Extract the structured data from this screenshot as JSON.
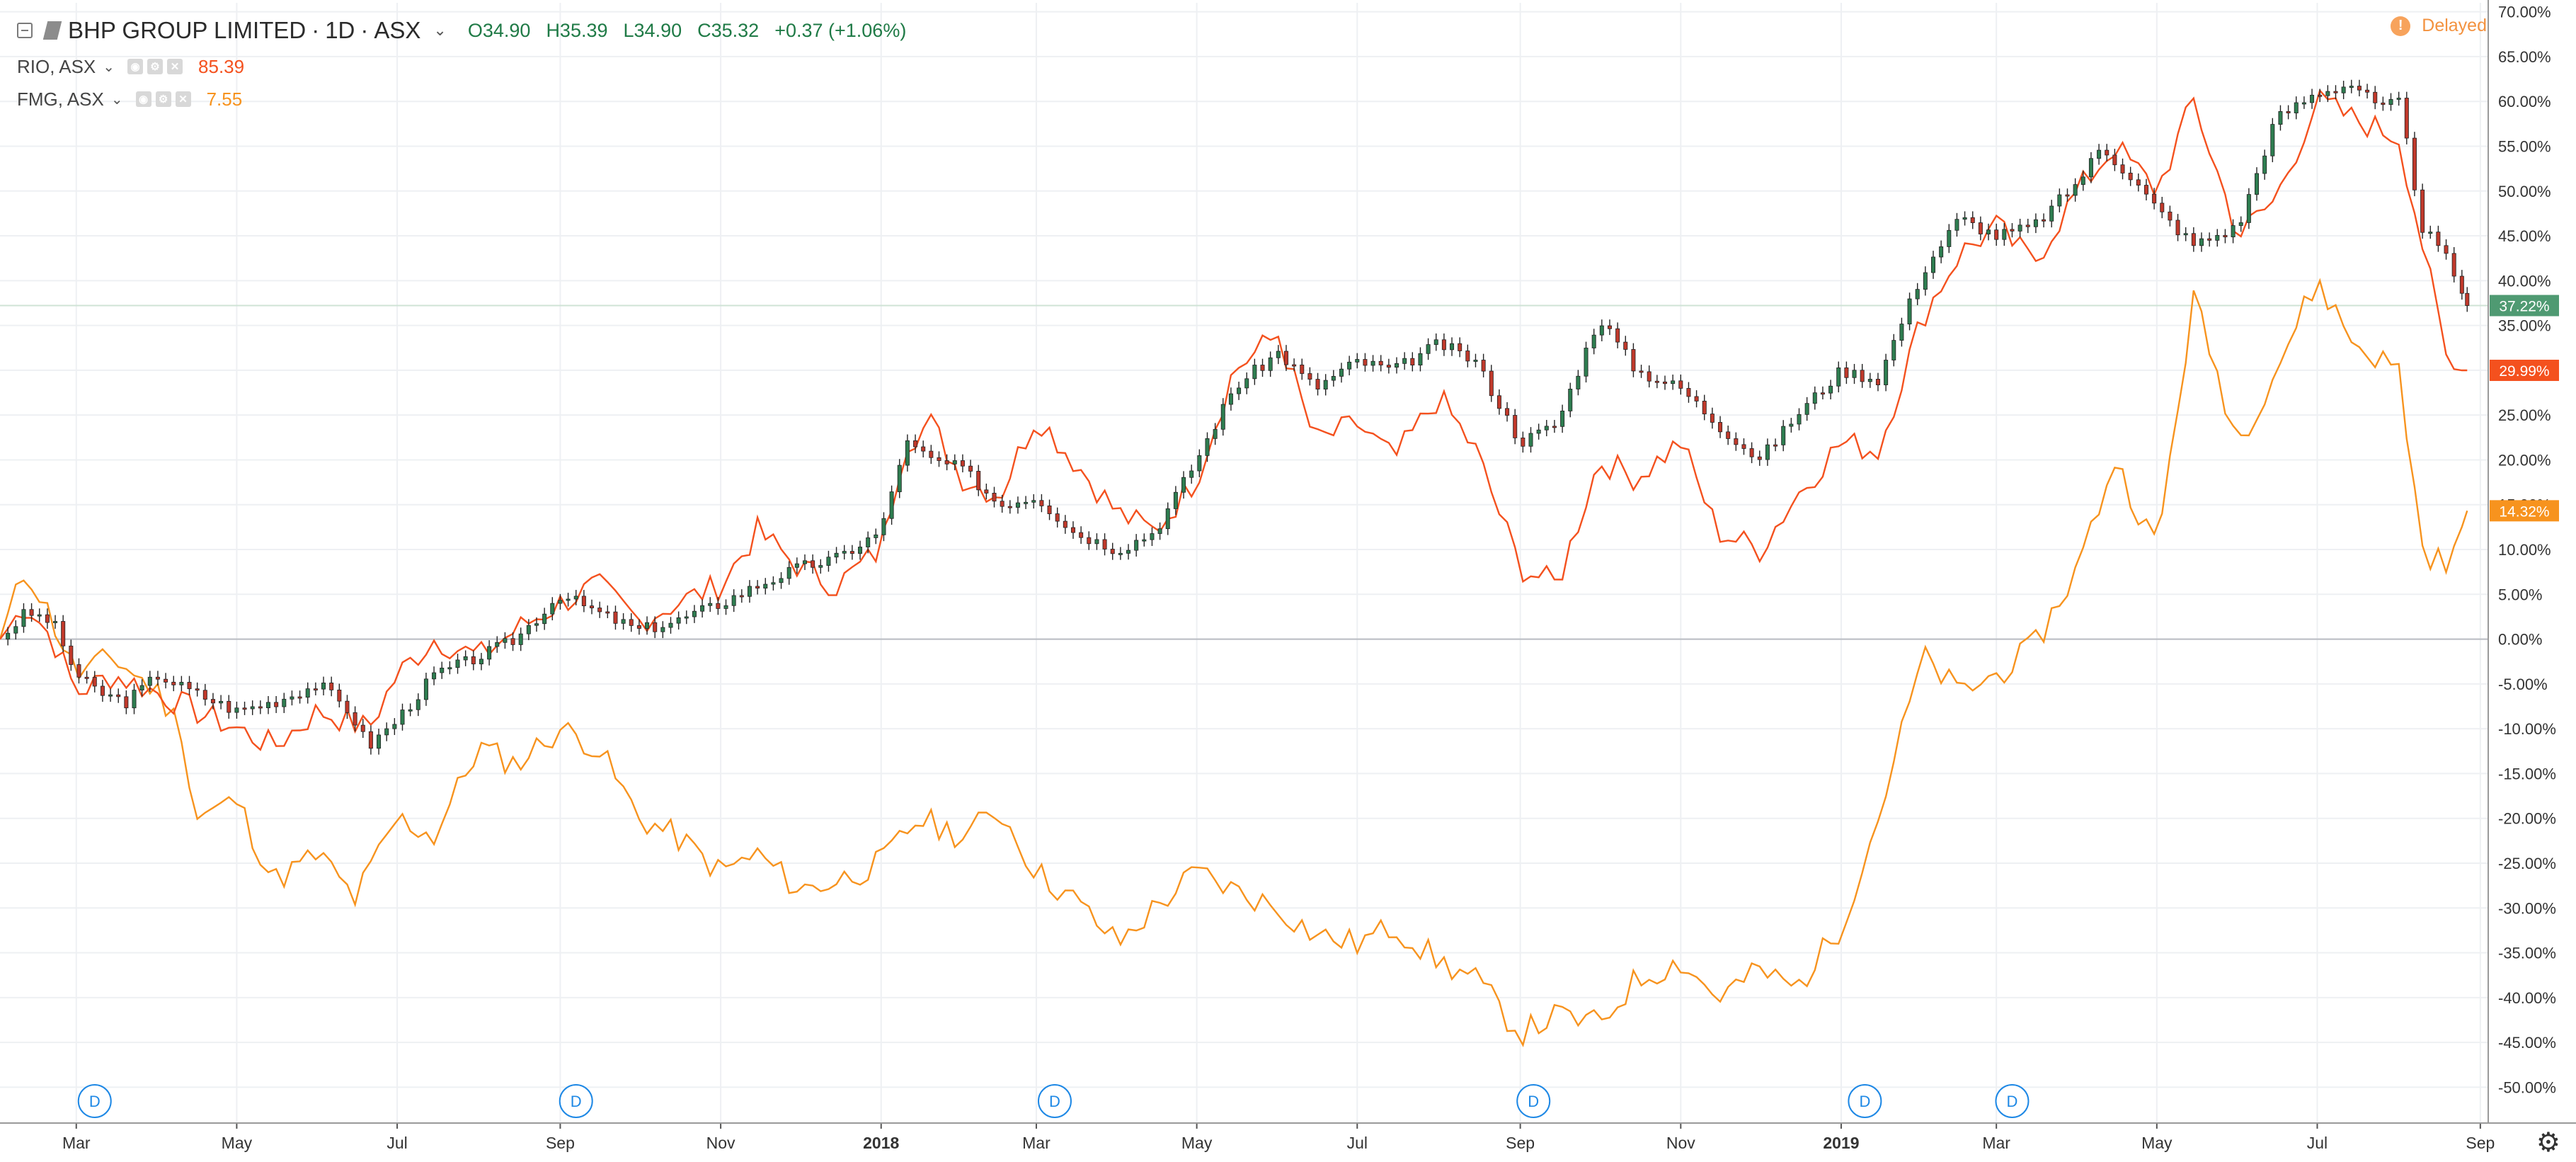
{
  "legend": {
    "main": {
      "symbol": "BHP GROUP LIMITED",
      "interval": "1D",
      "exchange": "ASX",
      "open": "O34.90",
      "high": "H35.39",
      "low": "L34.90",
      "close": "C35.32",
      "change": "+0.37 (+1.06%)"
    },
    "compare": [
      {
        "label": "RIO, ASX",
        "value": "85.39",
        "color": "#f4511e"
      },
      {
        "label": "FMG, ASX",
        "value": "7.55",
        "color": "#f7931e"
      }
    ]
  },
  "status": {
    "delayed_label": "Delayed",
    "delayed_icon": "!"
  },
  "price_labels": {
    "bhp": "37.22%",
    "rio": "29.99%",
    "fmg": "14.32%"
  },
  "colors": {
    "up": "#2e7d50",
    "down": "#c0392b",
    "rio": "#f4511e",
    "fmg": "#f7931e",
    "bhp_label": "#4f9a72",
    "grid": "#eef0f3"
  },
  "chart_data": {
    "type": "line",
    "title": "BHP GROUP LIMITED · 1D · ASX",
    "ylabel": "",
    "y_unit": "%",
    "ylim": [
      -54,
      71
    ],
    "y_ticks": [
      70,
      65,
      60,
      55,
      50,
      45,
      40,
      35,
      30,
      25,
      20,
      15,
      10,
      5,
      0,
      -5,
      -10,
      -15,
      -20,
      -25,
      -30,
      -35,
      -40,
      -45,
      -50
    ],
    "x_ticks": [
      "Mar",
      "May",
      "Jul",
      "Sep",
      "Nov",
      "2018",
      "Mar",
      "May",
      "Jul",
      "Sep",
      "Nov",
      "2019",
      "Mar",
      "May",
      "Jul",
      "Sep"
    ],
    "x_tick_dates": [
      "2017-03-01",
      "2017-05-01",
      "2017-07-01",
      "2017-09-01",
      "2017-11-01",
      "2018-01-01",
      "2018-03-01",
      "2018-05-01",
      "2018-07-01",
      "2018-09-01",
      "2018-11-01",
      "2019-01-01",
      "2019-03-01",
      "2019-05-01",
      "2019-07-01",
      "2019-09-01"
    ],
    "grid": true,
    "dividend_markers": {
      "label": "D",
      "dates": [
        "2017-03-08",
        "2017-09-07",
        "2018-03-08",
        "2018-09-06",
        "2019-01-10",
        "2019-03-07"
      ]
    },
    "series": [
      {
        "name": "BHP GROUP LIMITED",
        "style": "candles",
        "x": [
          "2017-01-31",
          "2017-02-10",
          "2017-02-20",
          "2017-03-01",
          "2017-03-10",
          "2017-03-20",
          "2017-04-01",
          "2017-04-15",
          "2017-05-01",
          "2017-05-15",
          "2017-06-01",
          "2017-06-13",
          "2017-06-20",
          "2017-07-01",
          "2017-07-15",
          "2017-08-01",
          "2017-08-15",
          "2017-09-01",
          "2017-09-15",
          "2017-10-01",
          "2017-10-15",
          "2017-11-01",
          "2017-11-15",
          "2017-12-01",
          "2017-12-15",
          "2018-01-01",
          "2018-01-10",
          "2018-01-20",
          "2018-02-01",
          "2018-02-15",
          "2018-03-01",
          "2018-03-15",
          "2018-04-01",
          "2018-04-15",
          "2018-05-01",
          "2018-05-15",
          "2018-06-01",
          "2018-06-15",
          "2018-07-01",
          "2018-07-15",
          "2018-08-01",
          "2018-08-15",
          "2018-09-01",
          "2018-09-15",
          "2018-10-01",
          "2018-10-15",
          "2018-11-01",
          "2018-11-15",
          "2018-12-01",
          "2018-12-15",
          "2019-01-01",
          "2019-01-15",
          "2019-02-01",
          "2019-02-15",
          "2019-03-01",
          "2019-03-15",
          "2019-04-01",
          "2019-04-10",
          "2019-04-20",
          "2019-05-01",
          "2019-05-15",
          "2019-06-01",
          "2019-06-15",
          "2019-07-01",
          "2019-07-15",
          "2019-07-25",
          "2019-08-01",
          "2019-08-10",
          "2019-08-20",
          "2019-08-27"
        ],
        "values": [
          0,
          3,
          2,
          -4,
          -6,
          -7,
          -4,
          -6,
          -8,
          -7,
          -5,
          -8,
          -12,
          -9,
          -4,
          -2,
          0,
          5,
          3,
          1,
          2,
          4,
          6,
          8,
          9,
          12,
          22,
          20,
          19,
          15,
          16,
          12,
          10,
          12,
          20,
          28,
          32,
          28,
          31,
          30,
          33,
          31,
          22,
          24,
          36,
          30,
          28,
          24,
          20,
          25,
          30,
          29,
          41,
          47,
          45,
          46,
          51,
          55,
          52,
          48,
          44,
          46,
          58,
          61,
          62,
          59,
          60,
          46,
          42,
          37.22
        ]
      },
      {
        "name": "RIO, ASX",
        "style": "line",
        "x": [
          "2017-01-31",
          "2017-02-10",
          "2017-02-20",
          "2017-03-01",
          "2017-03-15",
          "2017-04-01",
          "2017-04-15",
          "2017-05-01",
          "2017-05-15",
          "2017-06-01",
          "2017-06-20",
          "2017-07-01",
          "2017-07-15",
          "2017-08-01",
          "2017-08-15",
          "2017-09-01",
          "2017-09-15",
          "2017-10-01",
          "2017-10-15",
          "2017-11-01",
          "2017-11-15",
          "2017-12-01",
          "2017-12-15",
          "2018-01-01",
          "2018-01-10",
          "2018-01-20",
          "2018-02-01",
          "2018-02-15",
          "2018-03-01",
          "2018-03-15",
          "2018-04-01",
          "2018-04-15",
          "2018-05-01",
          "2018-05-15",
          "2018-06-01",
          "2018-06-15",
          "2018-07-01",
          "2018-07-15",
          "2018-08-01",
          "2018-08-15",
          "2018-09-01",
          "2018-09-15",
          "2018-10-01",
          "2018-10-15",
          "2018-11-01",
          "2018-11-15",
          "2018-12-01",
          "2018-12-15",
          "2019-01-01",
          "2019-01-15",
          "2019-02-01",
          "2019-02-15",
          "2019-03-01",
          "2019-03-15",
          "2019-04-01",
          "2019-04-15",
          "2019-05-01",
          "2019-05-15",
          "2019-06-01",
          "2019-06-15",
          "2019-07-01",
          "2019-07-15",
          "2019-08-01",
          "2019-08-10",
          "2019-08-20",
          "2019-08-27"
        ],
        "values": [
          0,
          4,
          0,
          -6,
          -4,
          -6,
          -8,
          -10,
          -12,
          -8,
          -10,
          -4,
          0,
          -2,
          1,
          4,
          6,
          2,
          4,
          6,
          12,
          8,
          6,
          10,
          22,
          24,
          18,
          16,
          25,
          20,
          14,
          12,
          18,
          30,
          34,
          22,
          24,
          20,
          27,
          21,
          8,
          6,
          20,
          18,
          22,
          12,
          10,
          16,
          22,
          21,
          36,
          43,
          46,
          42,
          50,
          55,
          50,
          60,
          45,
          49,
          60,
          58,
          56,
          44,
          30,
          29.99
        ]
      },
      {
        "name": "FMG, ASX",
        "style": "line",
        "x": [
          "2017-01-31",
          "2017-02-10",
          "2017-02-20",
          "2017-03-01",
          "2017-03-15",
          "2017-04-01",
          "2017-04-10",
          "2017-04-15",
          "2017-05-01",
          "2017-05-15",
          "2017-06-01",
          "2017-06-15",
          "2017-07-01",
          "2017-07-15",
          "2017-08-01",
          "2017-08-15",
          "2017-09-01",
          "2017-09-15",
          "2017-10-01",
          "2017-10-15",
          "2017-11-01",
          "2017-11-15",
          "2017-12-01",
          "2017-12-15",
          "2018-01-01",
          "2018-01-15",
          "2018-02-01",
          "2018-02-15",
          "2018-03-01",
          "2018-03-15",
          "2018-04-01",
          "2018-04-15",
          "2018-05-01",
          "2018-05-15",
          "2018-06-01",
          "2018-06-15",
          "2018-07-01",
          "2018-07-15",
          "2018-08-01",
          "2018-08-15",
          "2018-09-01",
          "2018-09-15",
          "2018-10-01",
          "2018-10-15",
          "2018-11-01",
          "2018-11-15",
          "2018-12-01",
          "2018-12-15",
          "2019-01-01",
          "2019-01-15",
          "2019-02-01",
          "2019-02-15",
          "2019-03-01",
          "2019-03-15",
          "2019-04-01",
          "2019-04-15",
          "2019-05-01",
          "2019-05-15",
          "2019-06-01",
          "2019-06-15",
          "2019-07-01",
          "2019-07-15",
          "2019-08-01",
          "2019-08-10",
          "2019-08-20",
          "2019-08-27"
        ],
        "values": [
          0,
          8,
          2,
          -4,
          -2,
          -6,
          -10,
          -20,
          -18,
          -27,
          -24,
          -29,
          -20,
          -22,
          -12,
          -14,
          -10,
          -12,
          -20,
          -22,
          -26,
          -24,
          -28,
          -27,
          -25,
          -20,
          -22,
          -19,
          -26,
          -29,
          -34,
          -30,
          -26,
          -28,
          -30,
          -33,
          -34,
          -32,
          -36,
          -38,
          -44,
          -42,
          -43,
          -38,
          -36,
          -40,
          -37,
          -39,
          -32,
          -20,
          -2,
          -6,
          -4,
          -1,
          8,
          20,
          10,
          38,
          22,
          30,
          40,
          33,
          30,
          10,
          8,
          14.32
        ]
      }
    ]
  }
}
